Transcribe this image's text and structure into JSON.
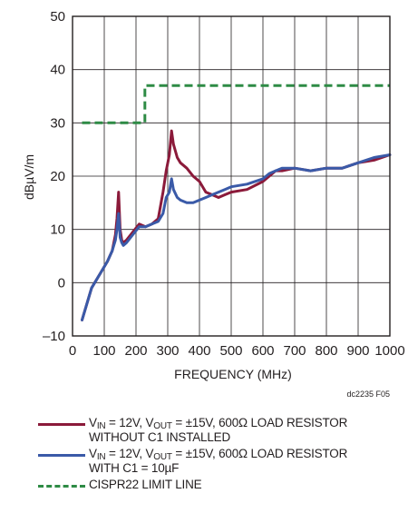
{
  "chart_data": {
    "type": "line",
    "title": "",
    "xlabel": "FREQUENCY (MHz)",
    "ylabel": "dBµV/m",
    "xlim": [
      0,
      1000
    ],
    "ylim": [
      -10,
      50
    ],
    "xticks": [
      "0",
      "100",
      "200",
      "300",
      "400",
      "500",
      "600",
      "700",
      "800",
      "900",
      "1000"
    ],
    "yticks": [
      "50",
      "40",
      "30",
      "20",
      "10",
      "0",
      "–10"
    ],
    "grid": true,
    "figure_id": "dc2235 F05",
    "series": [
      {
        "color": "#8b1a3a",
        "x": [
          30,
          60,
          90,
          110,
          125,
          135,
          140,
          145,
          150,
          155,
          160,
          170,
          190,
          210,
          230,
          250,
          270,
          285,
          295,
          305,
          312,
          318,
          330,
          340,
          360,
          380,
          400,
          420,
          440,
          460,
          480,
          500,
          550,
          600,
          620,
          640,
          660,
          700,
          750,
          800,
          850,
          900,
          950,
          1000
        ],
        "y": [
          -7,
          -1,
          2,
          4,
          6,
          9,
          12,
          17,
          10,
          8,
          7.5,
          8,
          9.5,
          11,
          10.5,
          11,
          12,
          17,
          21,
          24,
          28.5,
          26,
          23.5,
          22.5,
          21.5,
          20,
          19,
          17,
          16.5,
          16,
          16.5,
          17,
          17.5,
          19,
          20,
          21,
          21,
          21.5,
          21,
          21.5,
          21.5,
          22.5,
          23,
          24
        ]
      },
      {
        "color": "#3a5aa8",
        "x": [
          30,
          60,
          90,
          110,
          125,
          135,
          140,
          145,
          150,
          155,
          160,
          170,
          190,
          210,
          230,
          250,
          270,
          285,
          295,
          305,
          312,
          318,
          330,
          340,
          360,
          380,
          400,
          420,
          440,
          460,
          480,
          500,
          550,
          600,
          620,
          640,
          660,
          700,
          750,
          800,
          850,
          900,
          950,
          1000
        ],
        "y": [
          -7,
          -1,
          2,
          4,
          6,
          8,
          10,
          13,
          8.5,
          7.5,
          7,
          7.5,
          9,
          10.5,
          10.5,
          11,
          11.5,
          13,
          16,
          17,
          19.5,
          17.5,
          16,
          15.5,
          15,
          15,
          15.5,
          16,
          16.5,
          17,
          17.5,
          18,
          18.5,
          19.5,
          20.5,
          21,
          21.5,
          21.5,
          21,
          21.5,
          21.5,
          22.5,
          23.5,
          24
        ]
      },
      {
        "color": "#2e8b45",
        "x": [
          30,
          228,
          228,
          1000
        ],
        "y": [
          30,
          30,
          37,
          37
        ]
      }
    ]
  },
  "legend": {
    "item1": {
      "line1_a": "V",
      "line1_sub1": "IN",
      "line1_b": " = 12V, V",
      "line1_sub2": "OUT",
      "line1_c": " = ±15V, 600Ω LOAD RESISTOR",
      "line2": "WITHOUT C1 INSTALLED",
      "color": "#8b1a3a"
    },
    "item2": {
      "line1_a": "V",
      "line1_sub1": "IN",
      "line1_b": " = 12V, V",
      "line1_sub2": "OUT",
      "line1_c": " = ±15V, 600Ω LOAD RESISTOR",
      "line2": "WITH C1 = 10µF",
      "color": "#3a5aa8"
    },
    "item3": {
      "label": "CISPR22  LIMIT LINE",
      "color": "#2e8b45"
    }
  }
}
